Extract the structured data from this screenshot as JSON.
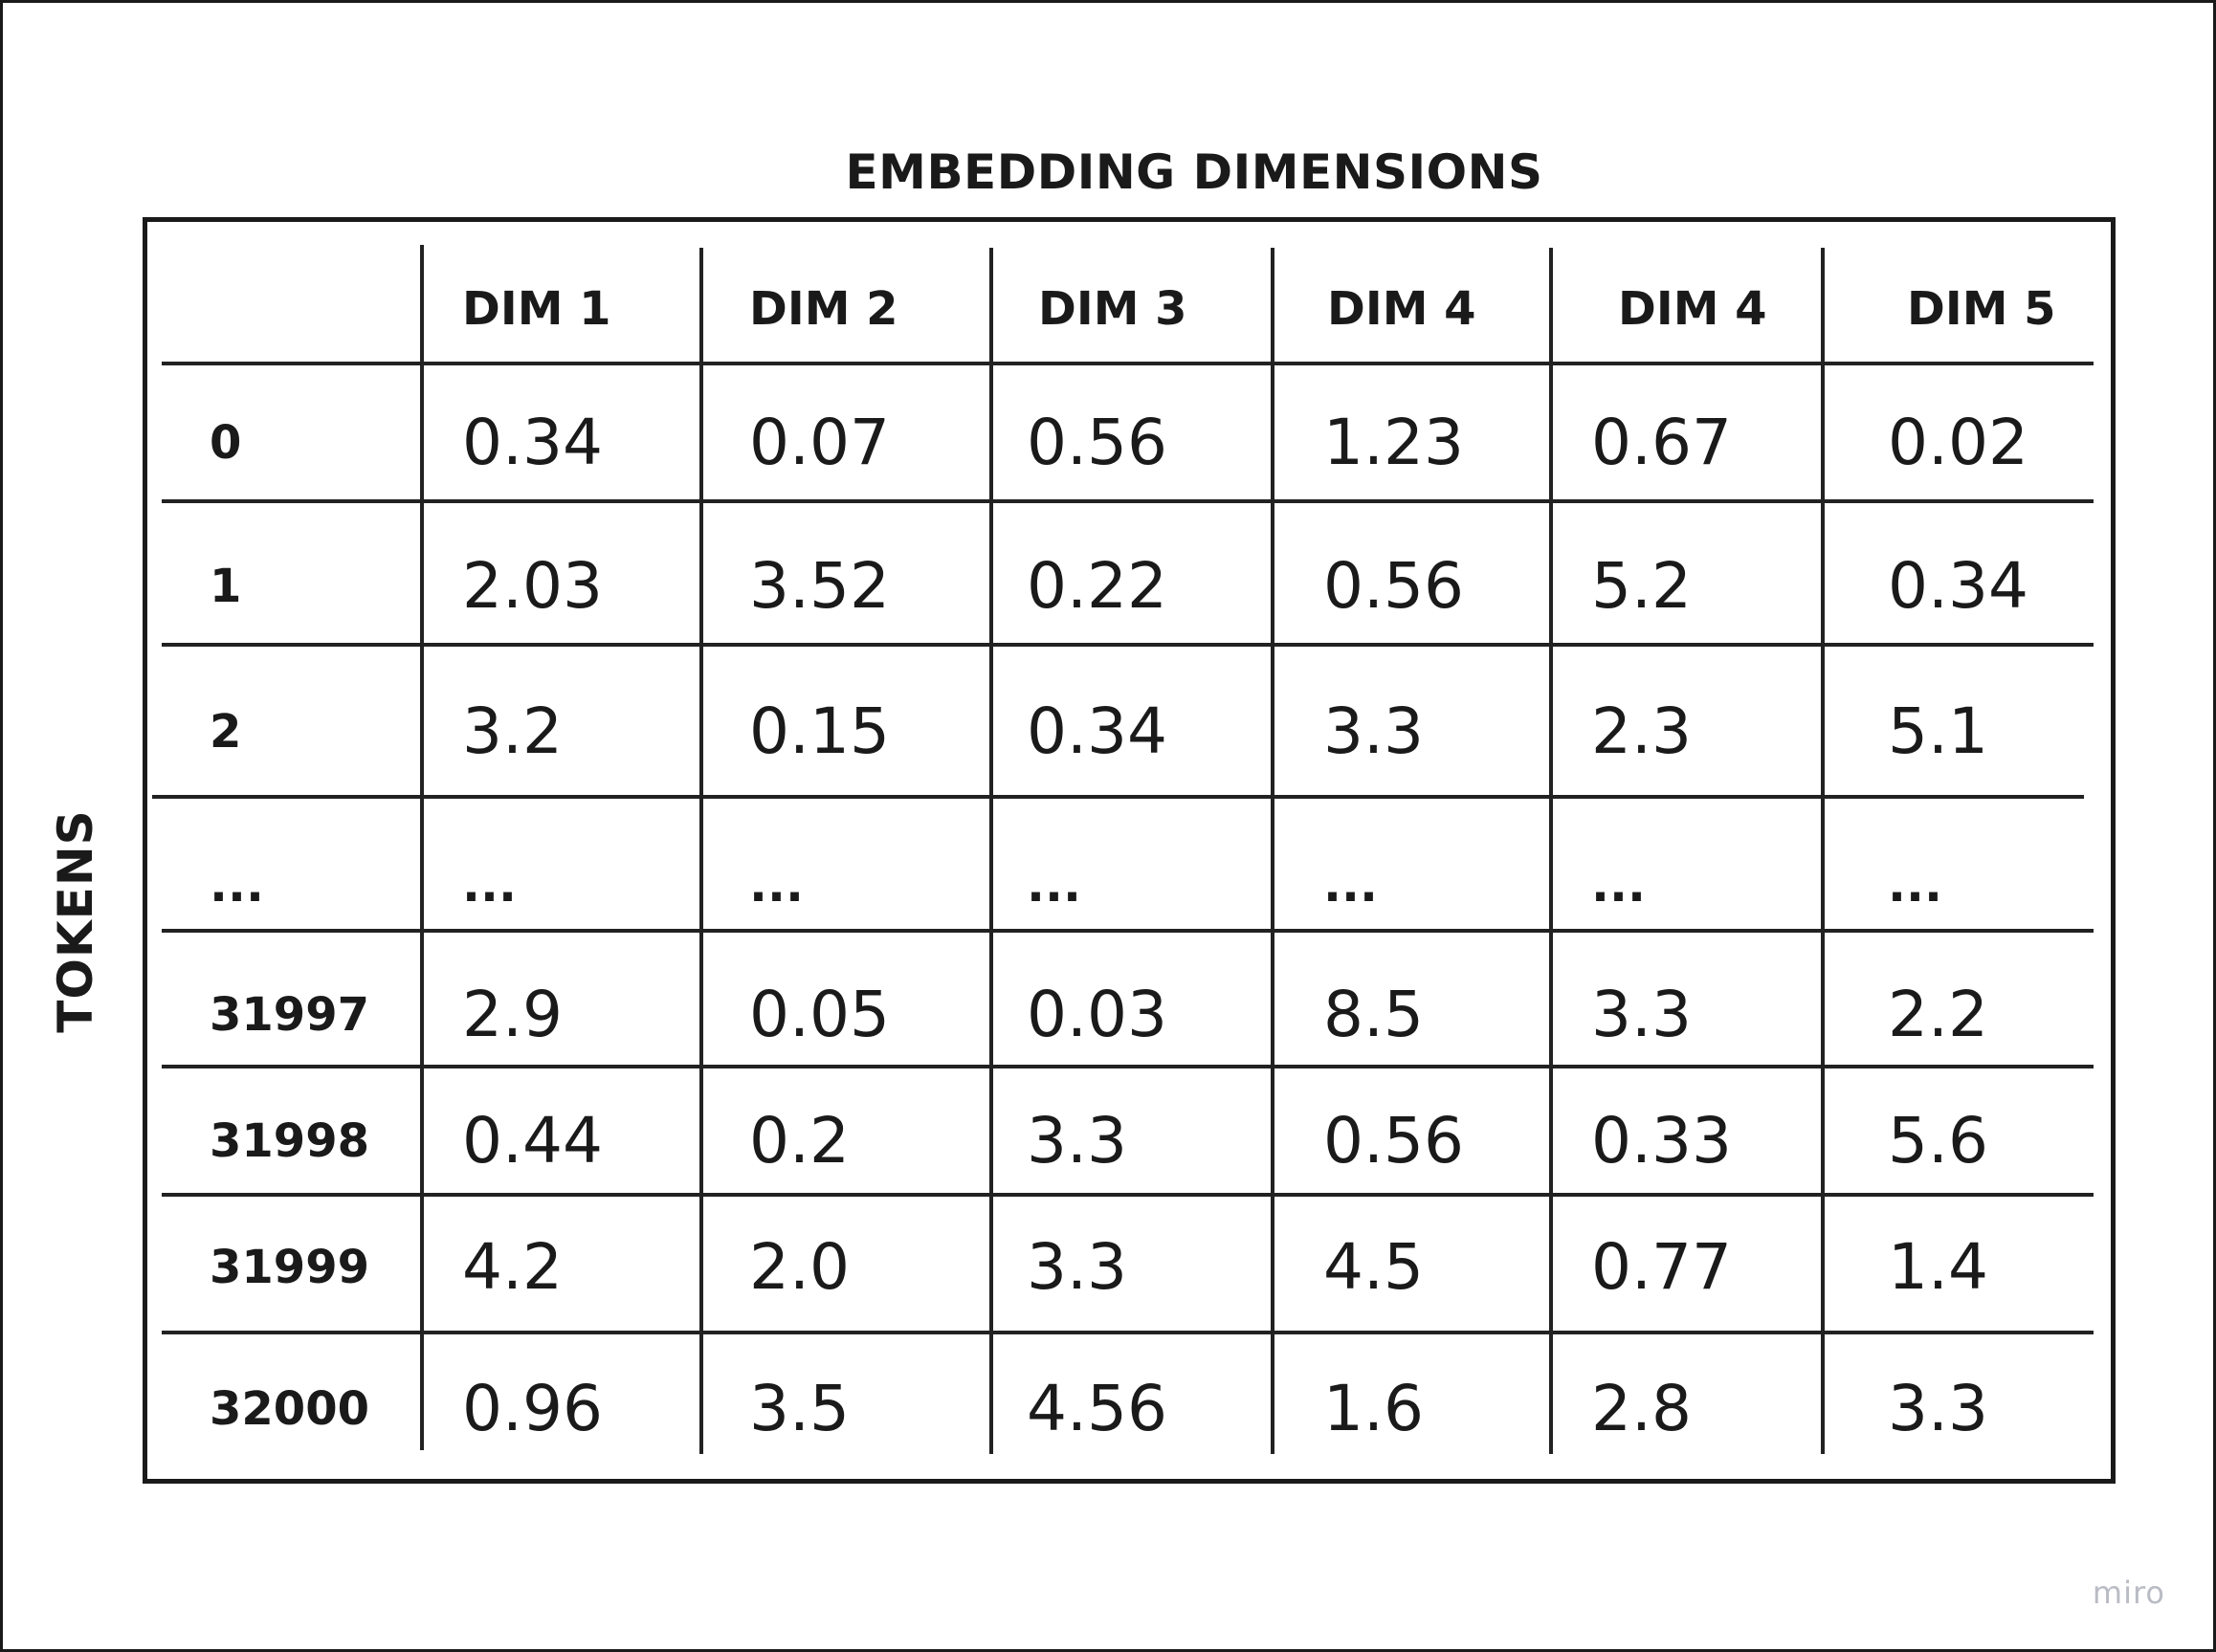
{
  "title_columns": "EMBEDDING DIMENSIONS",
  "title_rows": "TOKENS",
  "watermark": "miro",
  "columns": [
    "DIM 1",
    "DIM 2",
    "DIM 3",
    "DIM 4",
    "DIM 4",
    "DIM 5"
  ],
  "rows": [
    {
      "label": "0",
      "values": [
        "0.34",
        "0.07",
        "0.56",
        "1.23",
        "0.67",
        "0.02"
      ]
    },
    {
      "label": "1",
      "values": [
        "2.03",
        "3.52",
        "0.22",
        "0.56",
        "5.2",
        "0.34"
      ]
    },
    {
      "label": "2",
      "values": [
        "3.2",
        "0.15",
        "0.34",
        "3.3",
        "2.3",
        "5.1"
      ]
    },
    {
      "label": "...",
      "values": [
        "...",
        "...",
        "...",
        "...",
        "...",
        "..."
      ]
    },
    {
      "label": "31997",
      "values": [
        "2.9",
        "0.05",
        "0.03",
        "8.5",
        "3.3",
        "2.2"
      ]
    },
    {
      "label": "31998",
      "values": [
        "0.44",
        "0.2",
        "3.3",
        "0.56",
        "0.33",
        "5.6"
      ]
    },
    {
      "label": "31999",
      "values": [
        "4.2",
        "2.0",
        "3.3",
        "4.5",
        "0.77",
        "1.4"
      ]
    },
    {
      "label": "32000",
      "values": [
        "0.96",
        "3.5",
        "4.56",
        "1.6",
        "2.8",
        "3.3"
      ]
    }
  ]
}
